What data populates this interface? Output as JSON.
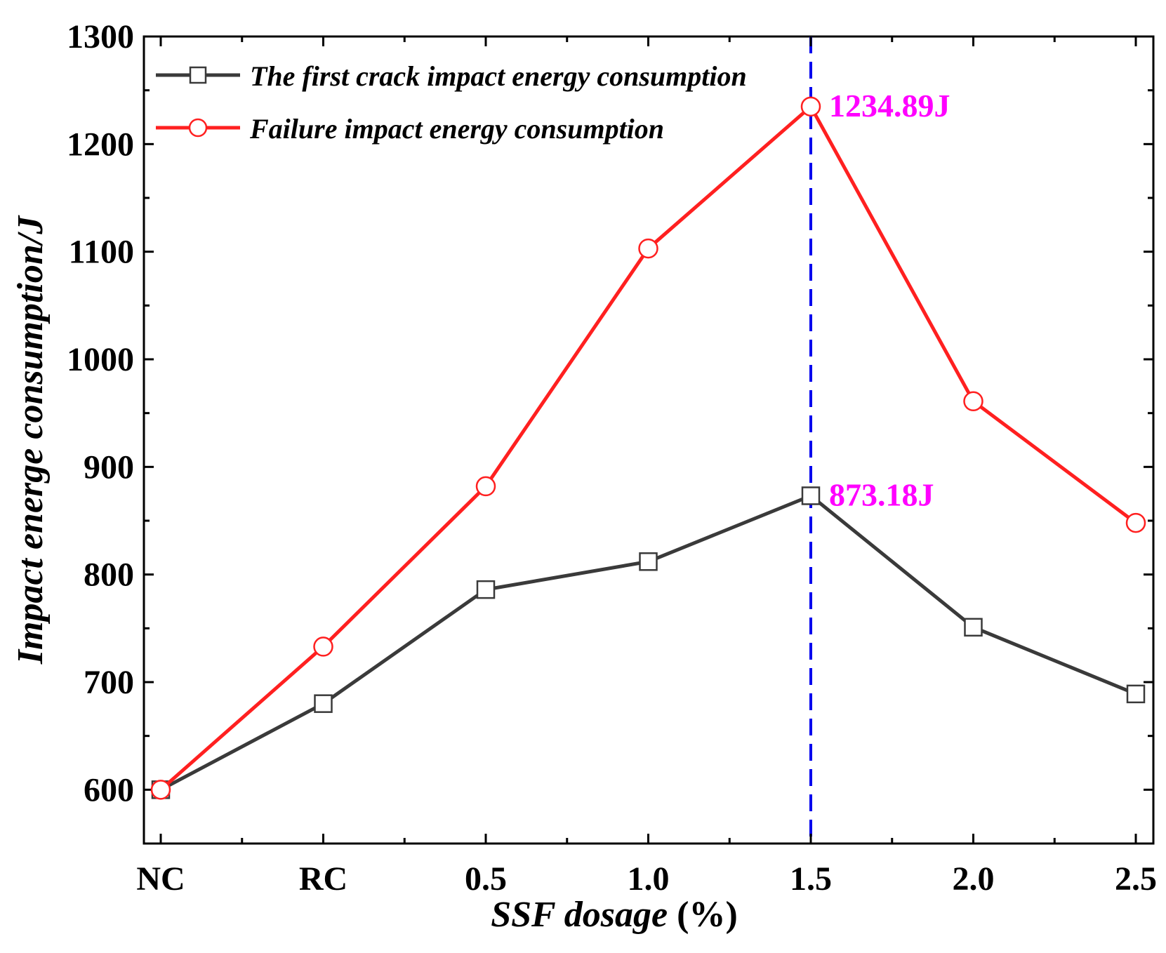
{
  "chart_data": {
    "type": "line",
    "title": "",
    "xlabel_italic": "SSF dosage",
    "xlabel_rest": " (%)",
    "ylabel": "Impact energe consumption/J",
    "categories": [
      "NC",
      "RC",
      "0.5",
      "1.0",
      "1.5",
      "2.0",
      "2.5"
    ],
    "ylim": [
      550,
      1300
    ],
    "yticks": [
      600,
      700,
      800,
      900,
      1000,
      1100,
      1200,
      1300
    ],
    "series": [
      {
        "name": "The first crack impact energy consumption",
        "color": "#3a3a3a",
        "marker": "square",
        "values": [
          600,
          680,
          786,
          812,
          873.18,
          751,
          689
        ]
      },
      {
        "name": "Failure impact energy consumption",
        "color": "#ff2020",
        "marker": "circle",
        "values": [
          600,
          733,
          882,
          1103,
          1234.89,
          961,
          848
        ]
      }
    ],
    "reference_line": {
      "category": "1.5",
      "color": "#0000ee",
      "style": "dashed"
    },
    "annotations": [
      {
        "text": "1234.89J",
        "category": "1.5",
        "value": 1234.89,
        "color": "#ff00ff"
      },
      {
        "text": "873.18J",
        "category": "1.5",
        "value": 873.18,
        "color": "#ff00ff"
      }
    ],
    "legend_position": "top-left",
    "grid": false
  }
}
